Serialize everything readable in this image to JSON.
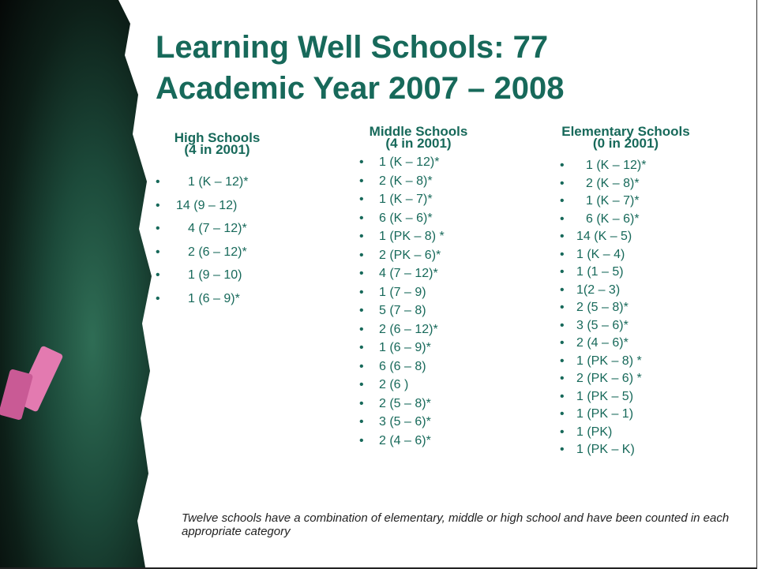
{
  "title": {
    "lines": [
      "Learning Well Schools: 77",
      "Academic Year 2007 – 2008"
    ]
  },
  "columns": [
    {
      "heading": "High Schools",
      "subheading": "(4 in 2001)",
      "items": [
        "1 (K – 12)*",
        "14 (9 – 12)",
        "4 (7 – 12)*",
        "2 (6 – 12)*",
        "1 (9 – 10)",
        "1 (6 – 9)*"
      ]
    },
    {
      "heading": "Middle Schools",
      "subheading": "(4 in 2001)",
      "items": [
        "1 (K – 12)*",
        "2 (K – 8)*",
        "1 (K – 7)*",
        "6 (K – 6)*",
        "1 (PK – 8) *",
        "2 (PK – 6)*",
        "4 (7 – 12)*",
        "1 (7 – 9)",
        "5 (7 – 8)",
        "2 (6 – 12)*",
        "1 (6 – 9)*",
        "6 (6 – 8)",
        "2 (6 )",
        "2 (5 – 8)*",
        "3 (5 – 6)*",
        "2 (4 – 6)*"
      ]
    },
    {
      "heading": "Elementary Schools",
      "subheading": "(0 in 2001)",
      "items": [
        "1 (K – 12)*",
        "2 (K – 8)*",
        "1 (K – 7)*",
        "6 (K – 6)*",
        "14 (K – 5)",
        "1 (K – 4)",
        "1 (1 – 5)",
        "1(2 – 3)",
        "2 (5 – 8)*",
        "3 (5 – 6)*",
        "2 (4 – 6)*",
        "1 (PK – 8) *",
        "2 (PK – 6) *",
        "1 (PK – 5)",
        "1 (PK – 1)",
        "1 (PK)",
        "1 (PK – K)"
      ]
    }
  ],
  "footnote": "Twelve schools have a combination of elementary, middle or high school and have been counted in each appropriate category"
}
